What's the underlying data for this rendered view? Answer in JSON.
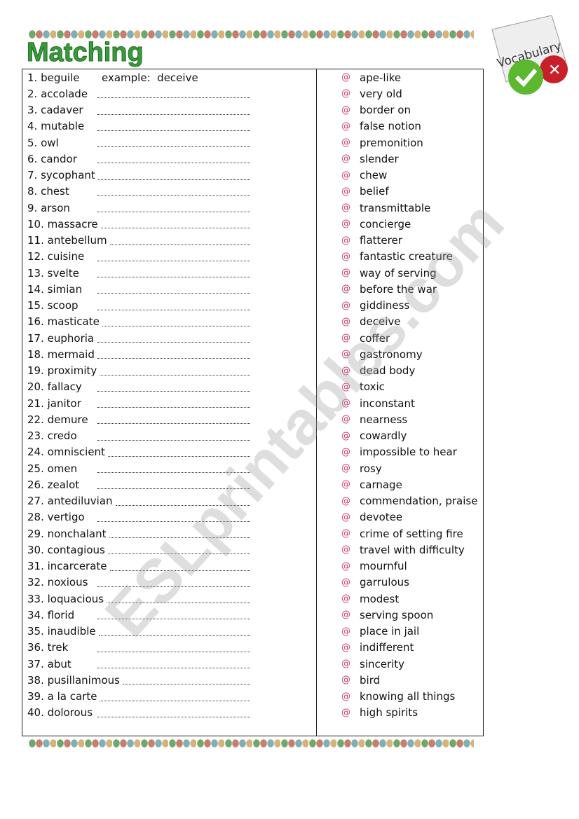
{
  "title": "Matching",
  "logo_text": "Vocabulary",
  "watermark": "ESLprintables.com",
  "example": {
    "label": "example:",
    "answer": "deceive"
  },
  "words": [
    "1. beguile",
    "2. accolade",
    "3. cadaver",
    "4. mutable",
    "5. owl",
    "6.  candor",
    "7. sycophant",
    "8. chest",
    "9. arson",
    "10. massacre",
    "11. antebellum",
    "12. cuisine",
    "13. svelte",
    "14. simian",
    "15. scoop",
    "16. masticate",
    "17. euphoria",
    "18. mermaid",
    "19. proximity",
    "20. fallacy",
    "21.  janitor",
    "22. demure",
    "23. credo",
    "24. omniscient",
    "25. omen",
    "26. zealot",
    "27. antediluvian",
    "28. vertigo",
    "29. nonchalant",
    "30. contagious",
    "31. incarcerate",
    "32. noxious",
    "33. loquacious",
    "34. florid",
    "35. inaudible",
    "36. trek",
    "37. abut",
    "38. pusillanimous",
    "39. a la carte",
    "40. dolorous"
  ],
  "definitions": [
    "ape-like",
    "very old",
    "border on",
    "false notion",
    "premonition",
    "slender",
    "chew",
    "belief",
    "transmittable",
    "concierge",
    "flatterer",
    "fantastic creature",
    "way of serving",
    "before the war",
    "giddiness",
    "deceive",
    "coffer",
    "gastronomy",
    "dead body",
    "toxic",
    "inconstant",
    "nearness",
    "cowardly",
    "impossible to hear",
    "rosy",
    "carnage",
    "commendation, praise",
    "devotee",
    "crime of setting fire",
    "travel with difficulty",
    "mournful",
    "garrulous",
    "modest",
    "serving spoon",
    "place in jail",
    "indifferent",
    "sincerity",
    "bird",
    "knowing all things",
    " high spirits"
  ],
  "bullet_icon": "swirl-icon",
  "colors": {
    "title": "#3b9a3b",
    "bullet": "#d0406a"
  }
}
